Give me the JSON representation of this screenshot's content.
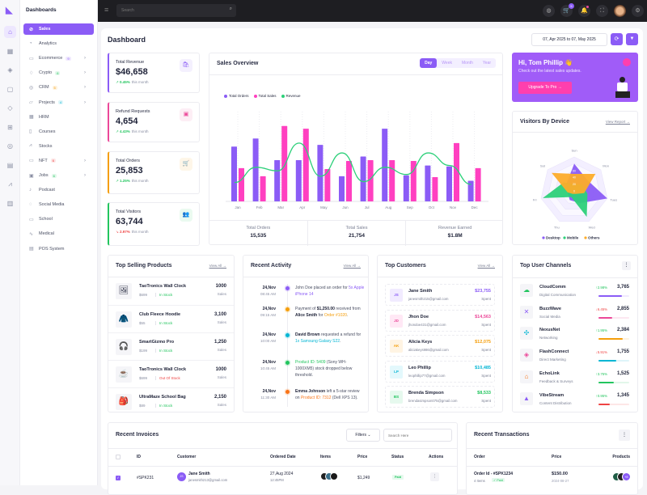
{
  "brand": {
    "logo_icon": "lightning-logo",
    "section": "Dashboards"
  },
  "rail": [
    "home-icon",
    "grid-icon",
    "layers-icon",
    "file-icon",
    "diamond-icon",
    "gift-icon",
    "compass-icon",
    "store-icon",
    "chart-icon",
    "table-icon"
  ],
  "sidebar": {
    "items": [
      {
        "label": "Sales",
        "icon": "⊘",
        "active": true
      },
      {
        "label": "Analytics",
        "icon": "◔"
      },
      {
        "label": "Ecommerce",
        "icon": "▭",
        "badge": "9",
        "badge_color": "#8b5cf6",
        "chevron": true
      },
      {
        "label": "Crypto",
        "icon": "♢",
        "badge": "6",
        "badge_color": "#22c55e",
        "chevron": true
      },
      {
        "label": "CRM",
        "icon": "◎",
        "badge": "5",
        "badge_color": "#f59e0b",
        "chevron": true
      },
      {
        "label": "Projects",
        "icon": "▱",
        "badge": "4",
        "badge_color": "#06b6d4",
        "chevron": true
      },
      {
        "label": "HRM",
        "icon": "▦"
      },
      {
        "label": "Courses",
        "icon": "▯"
      },
      {
        "label": "Stocks",
        "icon": "⩘"
      },
      {
        "label": "NFT",
        "icon": "▭",
        "badge": "6",
        "badge_color": "#ef4444",
        "chevron": true
      },
      {
        "label": "Jobs",
        "icon": "▣",
        "badge": "6",
        "badge_color": "#22c55e",
        "chevron": true
      },
      {
        "label": "Podcast",
        "icon": "♪"
      },
      {
        "label": "Social Media",
        "icon": "◌"
      },
      {
        "label": "School",
        "icon": "▭"
      },
      {
        "label": "Medical",
        "icon": "∿"
      },
      {
        "label": "POS System",
        "icon": "▤"
      }
    ]
  },
  "topbar": {
    "search_placeholder": "Search",
    "cart_count": "5",
    "icons": [
      "globe-icon",
      "cart-icon",
      "bell-icon",
      "fullscreen-icon",
      "avatar",
      "gear-icon"
    ]
  },
  "page": {
    "title": "Dashboard",
    "date_range": "07, Apr 2025 to 07, May 2025"
  },
  "stats": [
    {
      "label": "Total Revenue",
      "value": "$46,658",
      "change": "0.45%",
      "dir": "up",
      "suffix": "this month",
      "color": "#8b5cf6",
      "icon": "bag-icon"
    },
    {
      "label": "Refund Requests",
      "value": "4,654",
      "change": "4.43%",
      "dir": "up",
      "suffix": "this month",
      "color": "#ec4899",
      "icon": "box-icon"
    },
    {
      "label": "Total Orders",
      "value": "25,853",
      "change": "1.25%",
      "dir": "up",
      "suffix": "this month",
      "color": "#f59e0b",
      "icon": "cart-icon"
    },
    {
      "label": "Total Visitors",
      "value": "63,744",
      "change": "2.97%",
      "dir": "down",
      "suffix": "this month",
      "color": "#22c55e",
      "icon": "users-icon"
    }
  ],
  "sales_overview": {
    "title": "Sales Overview",
    "tabs": [
      "Day",
      "Week",
      "Month",
      "Year"
    ],
    "active_tab": "Day",
    "totals": [
      {
        "label": "Total Orders",
        "value": "15,535"
      },
      {
        "label": "Total Sales",
        "value": "21,754"
      },
      {
        "label": "Revenue Earned",
        "value": "$1.8M"
      }
    ]
  },
  "chart_data": [
    {
      "type": "bar",
      "categories": [
        "Jan",
        "Feb",
        "Mar",
        "Apr",
        "May",
        "Jun",
        "Jul",
        "Aug",
        "Sep",
        "Oct",
        "Nov",
        "Dec"
      ],
      "ylim": [
        0,
        100
      ],
      "grid": "vertical dotted",
      "legend": "top-left",
      "series": [
        {
          "name": "Total Orders",
          "type": "bar",
          "color": "#8b5cf6",
          "values": [
            61,
            70,
            46,
            46,
            63,
            28,
            50,
            81,
            29,
            40,
            39,
            23
          ]
        },
        {
          "name": "Total Sales",
          "type": "bar",
          "color": "#ff40c0",
          "values": [
            37,
            28,
            84,
            81,
            36,
            45,
            46,
            46,
            45,
            27,
            65,
            37
          ]
        },
        {
          "name": "Revenue",
          "type": "line",
          "color": "#2dd07a",
          "values": [
            21,
            38,
            34,
            65,
            28,
            54,
            22,
            38,
            30,
            54,
            40,
            19
          ]
        }
      ]
    },
    {
      "type": "radar",
      "title": "Visitors By Device",
      "categories": [
        "Sun",
        "Mon",
        "Tues",
        "Wed",
        "Thu",
        "Fri",
        "Sat"
      ],
      "ticks": [
        "0",
        "20",
        "40",
        "60"
      ],
      "rmax": 100,
      "legend": "bottom",
      "series": [
        {
          "name": "Desktop",
          "color": "#8b5cf6",
          "values": [
            80,
            50,
            100,
            40,
            30,
            20,
            30
          ]
        },
        {
          "name": "Mobile",
          "color": "#2dd07a",
          "values": [
            20,
            30,
            40,
            85,
            20,
            95,
            40
          ]
        },
        {
          "name": "Others",
          "color": "#fdac2a",
          "values": [
            50,
            80,
            30,
            10,
            10,
            20,
            85
          ]
        }
      ]
    }
  ],
  "promo": {
    "greeting": "Hi, Tom Phillip 👋",
    "text": "Check out the latest sales updates.",
    "button": "Upgrade To Pro →"
  },
  "visitors": {
    "title": "Visitors By Device",
    "link": "View Report →"
  },
  "top_products": {
    "title": "Top Selling Products",
    "link": "View All →",
    "items": [
      {
        "name": "TaoTronics Wall Clock",
        "price": "$699",
        "stock": "In Stock",
        "in": true,
        "sales": "1000",
        "sales_label": "Sales",
        "thumb": "🖼"
      },
      {
        "name": "Club Fleece Hoodie",
        "price": "$55",
        "stock": "In Stock",
        "in": true,
        "sales": "3,100",
        "sales_label": "Sales",
        "thumb": "🧥"
      },
      {
        "name": "SmartGizmo Pro",
        "price": "$199",
        "stock": "In Stock",
        "in": true,
        "sales": "1,250",
        "sales_label": "Sales",
        "thumb": "🎧"
      },
      {
        "name": "TaoTronics Wall Clock",
        "price": "$699",
        "stock": "Out Of Stock",
        "in": false,
        "sales": "1000",
        "sales_label": "Sales",
        "thumb": "☕"
      },
      {
        "name": "UltraMaze School Bag",
        "price": "$89",
        "stock": "In Stock",
        "in": true,
        "sales": "2,150",
        "sales_label": "Sales",
        "thumb": "🎒"
      }
    ]
  },
  "activity": {
    "title": "Recent Activity",
    "link": "View All →",
    "items": [
      {
        "date": "24,Nov",
        "time": "08:45 AM",
        "color": "#8b5cf6",
        "parts": [
          [
            "John Doe placed an order for ",
            ""
          ],
          [
            "5x Apple iPhone 14",
            "#8b5cf6"
          ]
        ]
      },
      {
        "date": "24,Nov",
        "time": "09:15 AM",
        "color": "#f59e0b",
        "parts": [
          [
            "Payment of ",
            ""
          ],
          [
            "$1,250.00",
            "b"
          ],
          [
            " received from ",
            ""
          ],
          [
            "Alice Smith",
            "b"
          ],
          [
            " for ",
            ""
          ],
          [
            "Order #1020",
            "#f59e0b"
          ],
          [
            ".",
            ""
          ]
        ]
      },
      {
        "date": "24,Nov",
        "time": "10:00 AM",
        "color": "#06b6d4",
        "parts": [
          [
            "David Brown",
            "b"
          ],
          [
            " requested a refund for ",
            ""
          ],
          [
            "1x Samsung Galaxy S22",
            "#06b6d4"
          ],
          [
            ".",
            ""
          ]
        ]
      },
      {
        "date": "24,Nov",
        "time": "10:45 AM",
        "color": "#22c55e",
        "parts": [
          [
            "Product ID: 5409",
            "#22c55e"
          ],
          [
            " (Sony WH-1000XM5) stock dropped below threshold.",
            ""
          ]
        ]
      },
      {
        "date": "24,Nov",
        "time": "11:30 AM",
        "color": "#f97316",
        "parts": [
          [
            "Emma Johnson",
            "b"
          ],
          [
            " left a 5-star review on ",
            ""
          ],
          [
            "Product ID: 7312",
            "#f97316"
          ],
          [
            " (Dell XPS 13).",
            ""
          ]
        ]
      }
    ]
  },
  "customers": {
    "title": "Top Customers",
    "link": "View All →",
    "items": [
      {
        "initials": "JS",
        "name": "Jane Smith",
        "email": "janesmith215@gmail.com",
        "amount": "$23,755",
        "label": "Spent",
        "color": "#8b5cf6",
        "bg": "#f1ebff"
      },
      {
        "initials": "JD",
        "name": "Jhon Doe",
        "email": "jhondoe431@gmail.com",
        "amount": "$14,563",
        "label": "Spent",
        "color": "#ec4899",
        "bg": "#ffe8f5"
      },
      {
        "initials": "AK",
        "name": "Alicia Keys",
        "email": "aliciakeys986@gmail.com",
        "amount": "$12,075",
        "label": "Spent",
        "color": "#f59e0b",
        "bg": "#fff4e3"
      },
      {
        "initials": "LP",
        "name": "Leo Phillip",
        "email": "leophillip77@gmail.com",
        "amount": "$10,485",
        "label": "Spent",
        "color": "#06b6d4",
        "bg": "#e3f8fc"
      },
      {
        "initials": "BS",
        "name": "Brenda Simpson",
        "email": "brendasimpson075@gmail.com",
        "amount": "$8,533",
        "label": "Spent",
        "color": "#22c55e",
        "bg": "#e6f9ee"
      }
    ]
  },
  "channels": {
    "title": "Top User Channels",
    "items": [
      {
        "name": "CloudComm",
        "sub": "Digital Communication",
        "change": "2.98%",
        "dir": "up",
        "value": "3,765",
        "color": "#8b5cf6",
        "progress": 75,
        "icon": "☁",
        "icolor": "#22c55e"
      },
      {
        "name": "BuzzWave",
        "sub": "Social Media",
        "change": "6.45%",
        "dir": "down",
        "value": "2,855",
        "color": "#ec4899",
        "progress": 45,
        "icon": "✕",
        "icolor": "#8b5cf6"
      },
      {
        "name": "NexusNet",
        "sub": "Networking",
        "change": "1.95%",
        "dir": "up",
        "value": "2,384",
        "color": "#f59e0b",
        "progress": 80,
        "icon": "✣",
        "icolor": "#06b6d4"
      },
      {
        "name": "FlashConnect",
        "sub": "Direct Marketing",
        "change": "5.91%",
        "dir": "down",
        "value": "1,755",
        "color": "#06b6d4",
        "progress": 58,
        "icon": "◈",
        "icolor": "#ec4899"
      },
      {
        "name": "EchoLink",
        "sub": "Feedback & Surveys",
        "change": "3.75%",
        "dir": "up",
        "value": "1,525",
        "color": "#22c55e",
        "progress": 50,
        "icon": "⌂",
        "icolor": "#f97316"
      },
      {
        "name": "VibeStream",
        "sub": "Content Distribution",
        "change": "0.95%",
        "dir": "up",
        "value": "1,345",
        "color": "#ef4444",
        "progress": 38,
        "icon": "▲",
        "icolor": "#8b5cf6"
      }
    ]
  },
  "invoices": {
    "title": "Recent Invoices",
    "filters": "Filters ⌄",
    "search_placeholder": "Search Here",
    "columns": [
      "ID",
      "Customer",
      "Ordered Date",
      "Items",
      "Price",
      "Status",
      "Actions"
    ],
    "rows": [
      {
        "checked": true,
        "id": "#SPK231",
        "initials": "JS",
        "name": "Jane Smith",
        "email": "janesmith213@gmail.com",
        "date": "27,Aug 2024",
        "time": "12:45PM",
        "price": "$1,249",
        "status": "Paid"
      }
    ]
  },
  "transactions": {
    "title": "Recent Transactions",
    "columns": [
      "Order",
      "Price",
      "Products"
    ],
    "rows": [
      {
        "order": "Order Id - #SPK1234",
        "items": "4 Items",
        "status": "✓ Paid",
        "price": "$150.00",
        "date": "2024-08-27",
        "more": "+8"
      }
    ]
  }
}
